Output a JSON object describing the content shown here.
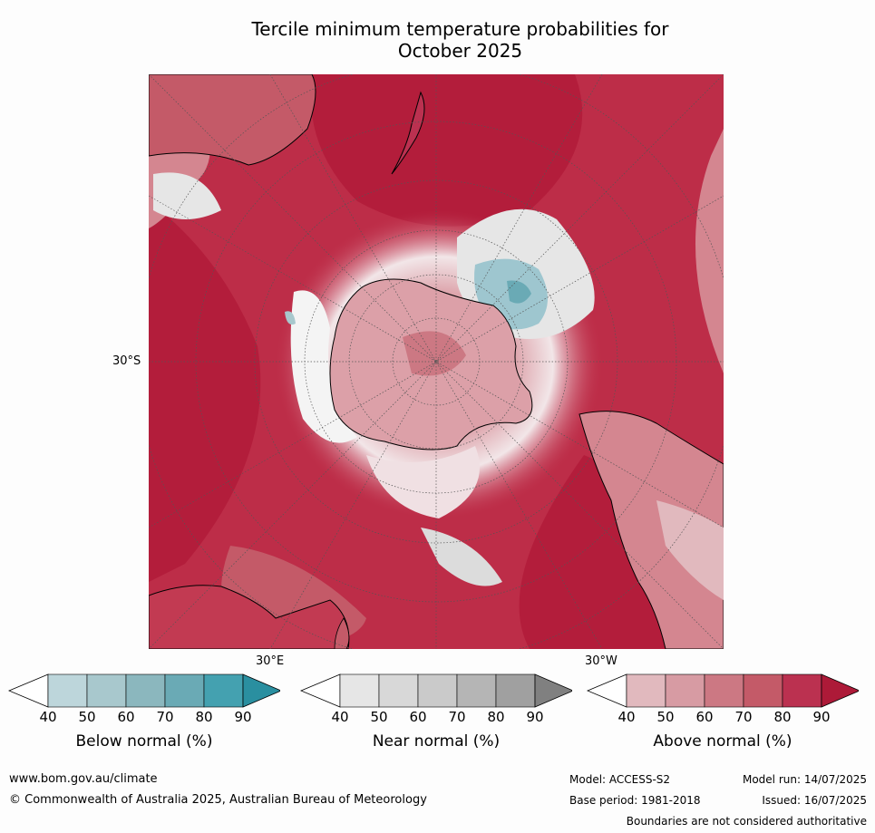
{
  "title": {
    "line1": "Tercile minimum temperature probabilities for",
    "line2": "October 2025"
  },
  "map": {
    "lat_label": "30°S",
    "lon_labels": {
      "east": "30°E",
      "west": "30°W"
    },
    "colors": {
      "above_high": "#b31d3b",
      "above_mid": "#c23a52",
      "above_low": "#d48690",
      "near": "#e6e6e6",
      "below": "#9ec6cf",
      "land_line": "#000000",
      "border_line": "#888888"
    }
  },
  "colorbars": [
    {
      "name": "below",
      "label": "Below normal (%)",
      "ticks": [
        "40",
        "50",
        "60",
        "70",
        "80",
        "90"
      ],
      "colors": [
        "#ffffff",
        "#bdd6db",
        "#a8c8cd",
        "#8bb7be",
        "#6aaab5",
        "#44a1b0",
        "#2a8fa0"
      ]
    },
    {
      "name": "near",
      "label": "Near normal (%)",
      "ticks": [
        "40",
        "50",
        "60",
        "70",
        "80",
        "90"
      ],
      "colors": [
        "#ffffff",
        "#e6e6e6",
        "#d8d8d8",
        "#cacaca",
        "#b5b5b5",
        "#a0a0a0",
        "#808080"
      ]
    },
    {
      "name": "above",
      "label": "Above normal (%)",
      "ticks": [
        "40",
        "50",
        "60",
        "70",
        "80",
        "90"
      ],
      "colors": [
        "#ffffff",
        "#e1b9be",
        "#d79ba3",
        "#cc7883",
        "#c45a68",
        "#bb3150",
        "#ad1a38"
      ]
    }
  ],
  "footer": {
    "website": "www.bom.gov.au/climate",
    "copyright": "© Commonwealth of Australia 2025, Australian Bureau of Meteorology",
    "model": "Model: ACCESS-S2",
    "base_period": "Base period: 1981-2018",
    "model_run": "Model run: 14/07/2025",
    "issued": "Issued: 16/07/2025",
    "disclaimer": "Boundaries are not considered authoritative"
  }
}
